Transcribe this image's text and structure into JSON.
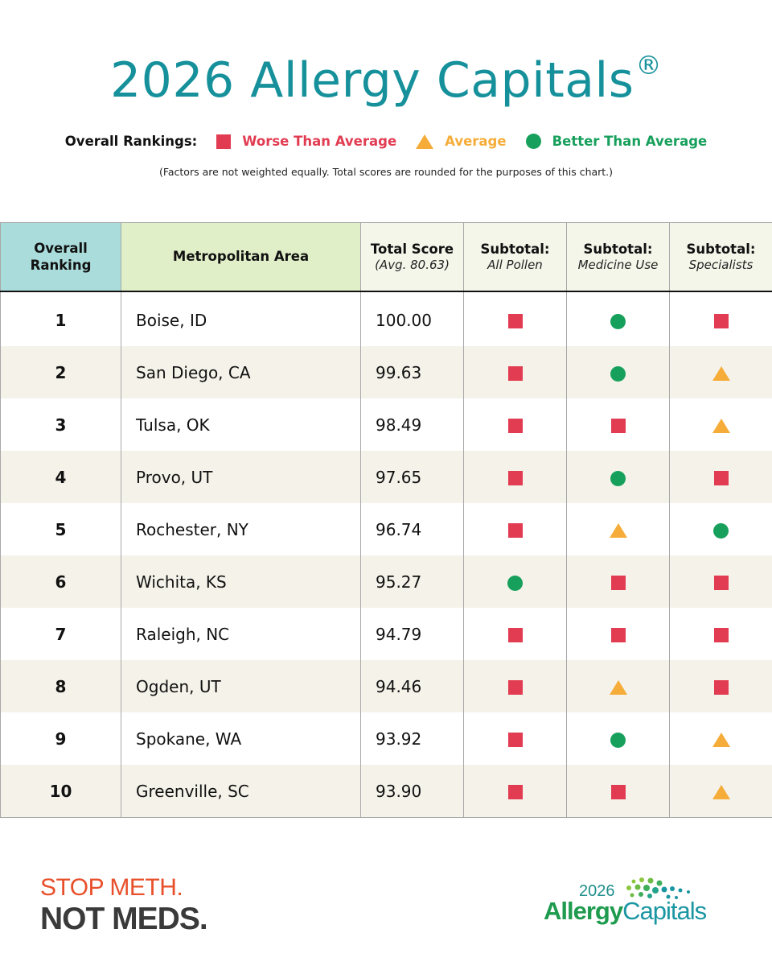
{
  "title": "2026 Allergy Capitals",
  "title_mark": "®",
  "legend": {
    "label": "Overall Rankings:",
    "items": [
      {
        "shape": "square",
        "label": "Worse Than Average",
        "color": "#e23c52"
      },
      {
        "shape": "triangle",
        "label": "Average",
        "color": "#f6ac39"
      },
      {
        "shape": "circle",
        "label": "Better Than Average",
        "color": "#17a05c"
      }
    ]
  },
  "note": "(Factors are not weighted equally. Total scores are rounded for the purposes of this chart.)",
  "table": {
    "headers": {
      "rank": "Overall Ranking",
      "metro": "Metropolitan Area",
      "score": "Total Score",
      "score_sub": "(Avg. 80.63)",
      "pollen": "Subtotal:",
      "pollen_sub": "All Pollen",
      "medicine": "Subtotal:",
      "medicine_sub": "Medicine Use",
      "specialists": "Subtotal:",
      "specialists_sub": "Specialists"
    },
    "rows": [
      {
        "rank": "1",
        "metro": "Boise, ID",
        "score": "100.00",
        "pollen": "square",
        "medicine": "circle",
        "specialists": "square"
      },
      {
        "rank": "2",
        "metro": "San Diego, CA",
        "score": "99.63",
        "pollen": "square",
        "medicine": "circle",
        "specialists": "triangle"
      },
      {
        "rank": "3",
        "metro": "Tulsa, OK",
        "score": "98.49",
        "pollen": "square",
        "medicine": "square",
        "specialists": "triangle"
      },
      {
        "rank": "4",
        "metro": "Provo, UT",
        "score": "97.65",
        "pollen": "square",
        "medicine": "circle",
        "specialists": "square"
      },
      {
        "rank": "5",
        "metro": "Rochester, NY",
        "score": "96.74",
        "pollen": "square",
        "medicine": "triangle",
        "specialists": "circle"
      },
      {
        "rank": "6",
        "metro": "Wichita, KS",
        "score": "95.27",
        "pollen": "circle",
        "medicine": "square",
        "specialists": "square"
      },
      {
        "rank": "7",
        "metro": "Raleigh, NC",
        "score": "94.79",
        "pollen": "square",
        "medicine": "square",
        "specialists": "square"
      },
      {
        "rank": "8",
        "metro": "Ogden, UT",
        "score": "94.46",
        "pollen": "square",
        "medicine": "triangle",
        "specialists": "square"
      },
      {
        "rank": "9",
        "metro": "Spokane, WA",
        "score": "93.92",
        "pollen": "square",
        "medicine": "circle",
        "specialists": "triangle"
      },
      {
        "rank": "10",
        "metro": "Greenville, SC",
        "score": "93.90",
        "pollen": "square",
        "medicine": "square",
        "specialists": "triangle"
      }
    ]
  },
  "footer": {
    "campaign_line1": "STOP METH.",
    "campaign_line2": "NOT MEDS.",
    "logo_year": "2026",
    "logo_word1": "Allergy",
    "logo_word2": "Capitals"
  }
}
